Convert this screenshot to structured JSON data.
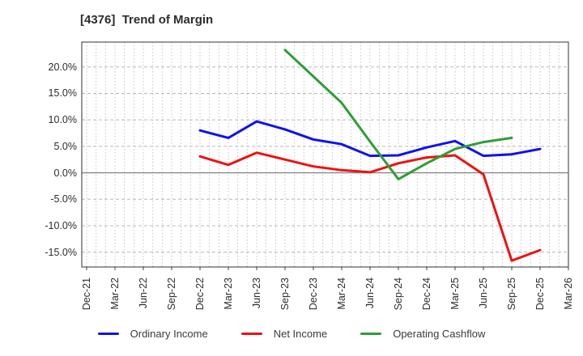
{
  "chart_data": {
    "type": "line",
    "title": "[4376]  Trend of Margin",
    "categories": [
      "Dec-21",
      "Mar-22",
      "Jun-22",
      "Sep-22",
      "Dec-22",
      "Mar-23",
      "Jun-23",
      "Sep-23",
      "Dec-23",
      "Mar-24",
      "Jun-24",
      "Sep-24",
      "Dec-24",
      "Mar-25",
      "Jun-25",
      "Sep-25",
      "Dec-25",
      "Mar-26"
    ],
    "xlabel": "",
    "ylabel": "",
    "y_axis": {
      "tick_values": [
        20,
        15,
        10,
        5,
        0,
        -5,
        -10,
        -15
      ],
      "tick_labels": [
        "20.0%",
        "15.0%",
        "10.0%",
        "5.0%",
        "0.0%",
        "-5.0%",
        "-10.0%",
        "-15.0%"
      ],
      "ylim": [
        -17.8,
        24.7
      ],
      "zero_line": 0
    },
    "grid": true,
    "legend_position": "bottom",
    "series": [
      {
        "name": "Ordinary Income",
        "color": "#1111ee",
        "values": [
          null,
          null,
          null,
          null,
          8.0,
          6.6,
          9.7,
          8.2,
          6.3,
          5.4,
          3.2,
          3.3,
          4.8,
          6.0,
          3.2,
          3.5,
          4.5,
          null
        ]
      },
      {
        "name": "Net Income",
        "color": "#ee1111",
        "values": [
          null,
          null,
          null,
          null,
          3.1,
          1.5,
          3.8,
          2.5,
          1.2,
          0.5,
          0.1,
          1.8,
          2.9,
          3.3,
          -0.3,
          -16.6,
          -14.6,
          null
        ]
      },
      {
        "name": "Operating Cashflow",
        "color": "#2e9e38",
        "values": [
          null,
          null,
          null,
          null,
          null,
          null,
          null,
          23.2,
          18.2,
          13.2,
          5.9,
          -1.2,
          1.8,
          4.5,
          5.8,
          6.6,
          null,
          null
        ]
      }
    ]
  }
}
